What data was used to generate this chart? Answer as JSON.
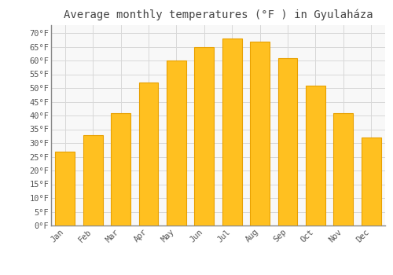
{
  "title": "Average monthly temperatures (°F ) in Gyulaháza",
  "months": [
    "Jan",
    "Feb",
    "Mar",
    "Apr",
    "May",
    "Jun",
    "Jul",
    "Aug",
    "Sep",
    "Oct",
    "Nov",
    "Dec"
  ],
  "values": [
    27,
    33,
    41,
    52,
    60,
    65,
    68,
    67,
    61,
    51,
    41,
    32
  ],
  "bar_color": "#FFC020",
  "bar_edge_color": "#E8A000",
  "background_color": "#ffffff",
  "plot_bg_color": "#f8f8f8",
  "grid_color": "#d8d8d8",
  "yticks": [
    0,
    5,
    10,
    15,
    20,
    25,
    30,
    35,
    40,
    45,
    50,
    55,
    60,
    65,
    70
  ],
  "ylim": [
    0,
    73
  ],
  "title_fontsize": 10,
  "tick_fontsize": 7.5,
  "title_color": "#444444",
  "tick_color": "#555555",
  "font_family": "monospace"
}
